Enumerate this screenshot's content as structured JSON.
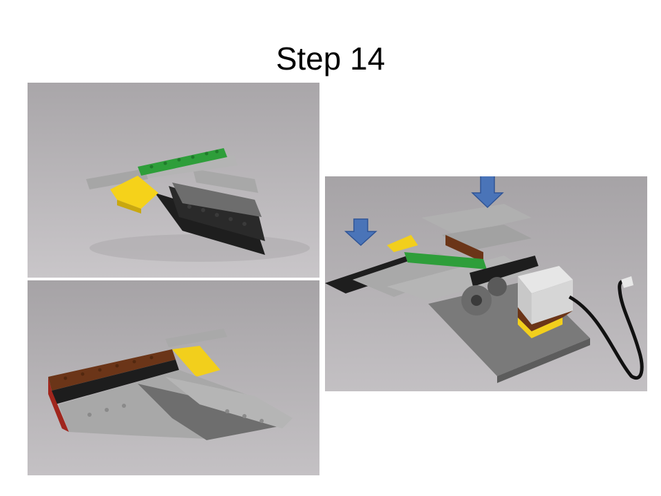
{
  "slide": {
    "title": "Step 14"
  },
  "photos": [
    {
      "id": "top-left",
      "subject": "lego-wing-assembly-front"
    },
    {
      "id": "bottom-left",
      "subject": "lego-wing-assembly-back"
    },
    {
      "id": "right",
      "subject": "lego-plane-on-motor-base"
    }
  ],
  "annotations": {
    "arrow_color": "#4a74b8",
    "arrow_count": 2
  }
}
